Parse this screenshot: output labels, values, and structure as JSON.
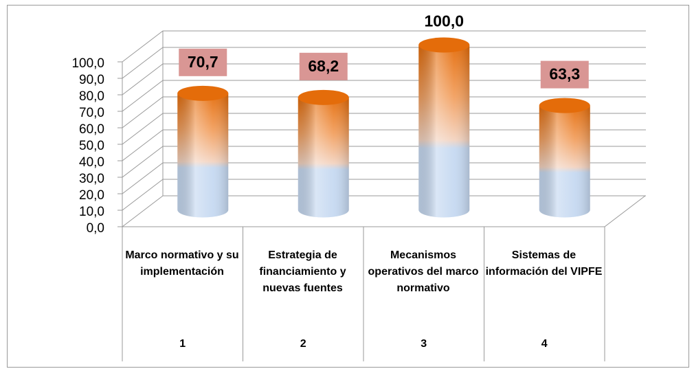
{
  "chart_data": {
    "type": "cylinder",
    "categories": [
      "Marco normativo y su implementación",
      "Estrategia de financiamiento y nuevas fuentes",
      "Mecanismos operativos del marco normativo",
      "Sistemas de información del VIPFE"
    ],
    "category_numbers": [
      "1",
      "2",
      "3",
      "4"
    ],
    "values": [
      70.7,
      68.2,
      100.0,
      63.3
    ],
    "value_labels": [
      "70,7",
      "68,2",
      "100,0",
      "63,3"
    ],
    "value_label_boxed": [
      true,
      true,
      false,
      true
    ],
    "ylim": [
      0,
      100
    ],
    "yticks": [
      {
        "value": 0,
        "label": "0,0"
      },
      {
        "value": 10,
        "label": "10,0"
      },
      {
        "value": 20,
        "label": "20,0"
      },
      {
        "value": 30,
        "label": "30,0"
      },
      {
        "value": 40,
        "label": "40,0"
      },
      {
        "value": 50,
        "label": "50,0"
      },
      {
        "value": 60,
        "label": "60,0"
      },
      {
        "value": 70,
        "label": "70,0"
      },
      {
        "value": 80,
        "label": "80,0"
      },
      {
        "value": 90,
        "label": "90,0"
      },
      {
        "value": 100,
        "label": "100,0"
      }
    ],
    "grid": true,
    "color": "#e46c0a",
    "label_box_color": "#d99694"
  }
}
